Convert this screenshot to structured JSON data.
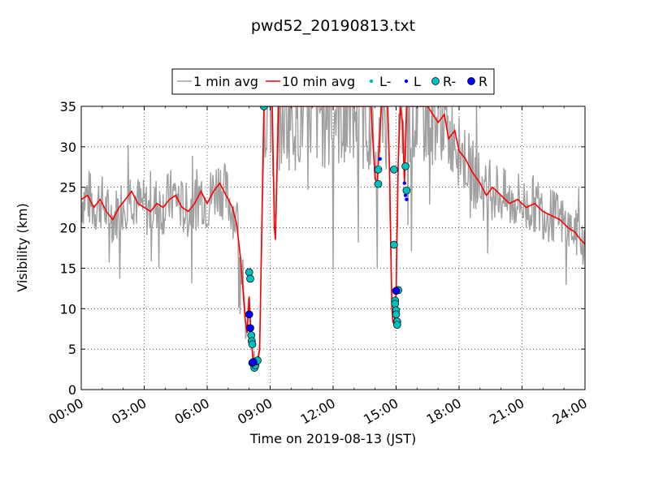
{
  "chart_data": {
    "type": "line",
    "title": "pwd52_20190813.txt",
    "xlabel": "Time on 2019-08-13 (JST)",
    "ylabel": "Visibility (km)",
    "xlim": [
      0,
      24
    ],
    "ylim": [
      0,
      35
    ],
    "x_unit": "hour",
    "x_ticks": [
      "00:00",
      "03:00",
      "06:00",
      "09:00",
      "12:00",
      "15:00",
      "18:00",
      "21:00",
      "24:00"
    ],
    "y_ticks": [
      "0",
      "5",
      "10",
      "15",
      "20",
      "25",
      "30",
      "35"
    ],
    "grid": true,
    "legend_position": "top-center",
    "colors": {
      "one_min": "#a0a0a0",
      "ten_min": "#ff0000",
      "L_minus": "#00bfbf",
      "L": "#0000ff",
      "R_minus": "#00bfbf",
      "R": "#0000ff"
    },
    "legend": [
      {
        "key": "one_min",
        "label": "1 min avg",
        "kind": "line"
      },
      {
        "key": "ten_min",
        "label": "10 min avg",
        "kind": "line"
      },
      {
        "key": "L_minus",
        "label": "L-",
        "kind": "small-dot"
      },
      {
        "key": "L",
        "label": "L",
        "kind": "small-dot"
      },
      {
        "key": "R_minus",
        "label": "R-",
        "kind": "big-dot"
      },
      {
        "key": "R",
        "label": "R",
        "kind": "big-dot"
      }
    ],
    "series": [
      {
        "key": "ten_min",
        "name": "10 min avg",
        "x": [
          0,
          0.3,
          0.6,
          0.9,
          1.2,
          1.5,
          1.8,
          2.1,
          2.4,
          2.7,
          3.0,
          3.3,
          3.6,
          3.9,
          4.2,
          4.5,
          4.8,
          5.1,
          5.4,
          5.7,
          6.0,
          6.3,
          6.6,
          6.9,
          7.2,
          7.4,
          7.6,
          7.8,
          7.9,
          8.0,
          8.1,
          8.2,
          8.3,
          8.4,
          8.5,
          8.6,
          8.7,
          8.8,
          8.9,
          9.0,
          9.1,
          9.2,
          9.25,
          9.4,
          9.7,
          10.0,
          10.5,
          11.0,
          11.5,
          12.0,
          12.5,
          13.0,
          13.5,
          13.8,
          14.0,
          14.1,
          14.2,
          14.3,
          14.4,
          14.6,
          14.7,
          14.8,
          14.85,
          14.9,
          14.95,
          15.0,
          15.1,
          15.2,
          15.3,
          15.4,
          15.5,
          15.6,
          15.8,
          16.0,
          16.5,
          17.0,
          17.3,
          17.5,
          17.8,
          18.0,
          18.3,
          18.6,
          19.0,
          19.3,
          19.6,
          20.0,
          20.4,
          20.8,
          21.2,
          21.6,
          22.0,
          22.4,
          22.8,
          23.2,
          23.5,
          23.8,
          24.0
        ],
        "y": [
          23.5,
          24.0,
          22.5,
          23.5,
          22.0,
          21.0,
          22.5,
          23.5,
          24.5,
          23.0,
          22.5,
          22.0,
          23.0,
          22.5,
          23.5,
          24.0,
          22.5,
          22.0,
          23.0,
          24.5,
          23.0,
          24.5,
          25.5,
          24.0,
          22.5,
          20.5,
          16.0,
          9.0,
          7.0,
          11.5,
          6.0,
          3.5,
          3.0,
          3.2,
          5.0,
          20.0,
          35.0,
          35.0,
          35.0,
          35.0,
          35.0,
          20.0,
          18.5,
          35.0,
          35.0,
          35.0,
          35.0,
          35.0,
          35.0,
          35.0,
          35.0,
          35.0,
          35.0,
          35.0,
          26.0,
          25.5,
          30.0,
          35.0,
          35.0,
          35.0,
          26.0,
          10.0,
          8.5,
          8.0,
          9.0,
          12.0,
          28.0,
          35.0,
          33.0,
          25.5,
          35.0,
          35.0,
          35.0,
          35.0,
          35.0,
          33.0,
          34.0,
          31.0,
          32.0,
          29.5,
          28.5,
          27.0,
          25.5,
          24.0,
          25.0,
          24.0,
          23.0,
          23.5,
          22.5,
          23.0,
          22.0,
          21.5,
          21.0,
          20.0,
          19.5,
          18.5,
          18.0
        ]
      },
      {
        "key": "L_minus",
        "name": "L-",
        "x": [
          14.2,
          14.25
        ],
        "y": [
          27.5,
          28.5
        ]
      },
      {
        "key": "L",
        "name": "L",
        "x": [
          8.0,
          8.1,
          8.2,
          15.4,
          15.5,
          15.45,
          14.22
        ],
        "y": [
          9.3,
          7.6,
          3.3,
          25.5,
          23.5,
          24.0,
          28.5
        ]
      },
      {
        "key": "R_minus",
        "name": "R-",
        "x": [
          8.0,
          8.05,
          8.1,
          8.12,
          8.15,
          8.2,
          8.25,
          8.3,
          8.35,
          8.4,
          14.15,
          14.15,
          14.9,
          14.9,
          14.95,
          14.95,
          15.0,
          15.0,
          15.05,
          15.05,
          15.1,
          15.45,
          15.5,
          8.7
        ],
        "y": [
          14.5,
          13.7,
          6.7,
          6.0,
          5.6,
          3.3,
          2.7,
          3.0,
          3.5,
          3.6,
          27.2,
          25.4,
          27.2,
          17.9,
          11.0,
          10.6,
          9.8,
          9.3,
          8.4,
          8.0,
          12.3,
          27.6,
          24.6,
          35.0
        ]
      },
      {
        "key": "R",
        "name": "R",
        "x": [
          8.0,
          8.05,
          8.15,
          8.2,
          15.0
        ],
        "y": [
          9.3,
          7.6,
          3.3,
          3.4,
          12.2
        ]
      }
    ]
  }
}
